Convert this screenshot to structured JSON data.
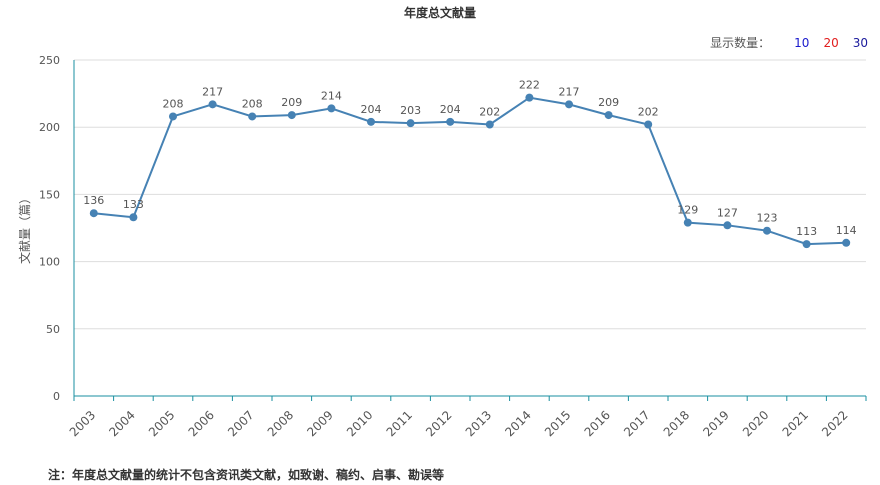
{
  "chart_data": {
    "type": "line",
    "title": "年度总文献量",
    "ylabel": "文献量（篇）",
    "xlabel": "",
    "categories": [
      "2003",
      "2004",
      "2005",
      "2006",
      "2007",
      "2008",
      "2009",
      "2010",
      "2011",
      "2012",
      "2013",
      "2014",
      "2015",
      "2016",
      "2017",
      "2018",
      "2019",
      "2020",
      "2021",
      "2022"
    ],
    "series": [
      {
        "values": [
          136,
          133,
          208,
          217,
          208,
          209,
          214,
          204,
          203,
          204,
          202,
          222,
          217,
          209,
          202,
          129,
          127,
          123,
          113,
          114
        ]
      }
    ],
    "ylim": [
      0,
      250
    ],
    "yticks": [
      0,
      50,
      100,
      150,
      200,
      250
    ],
    "grid": true,
    "line_color": "#4682b4"
  },
  "controls": {
    "display_count_label": "显示数量：",
    "options": [
      {
        "label": "10",
        "color": "#1a1acd"
      },
      {
        "label": "20",
        "color": "#e11d1d"
      },
      {
        "label": "30",
        "color": "#1a1a9c"
      }
    ]
  },
  "footnote": "注：年度总文献量的统计不包含资讯类文献，如致谢、稿约、启事、勘误等"
}
